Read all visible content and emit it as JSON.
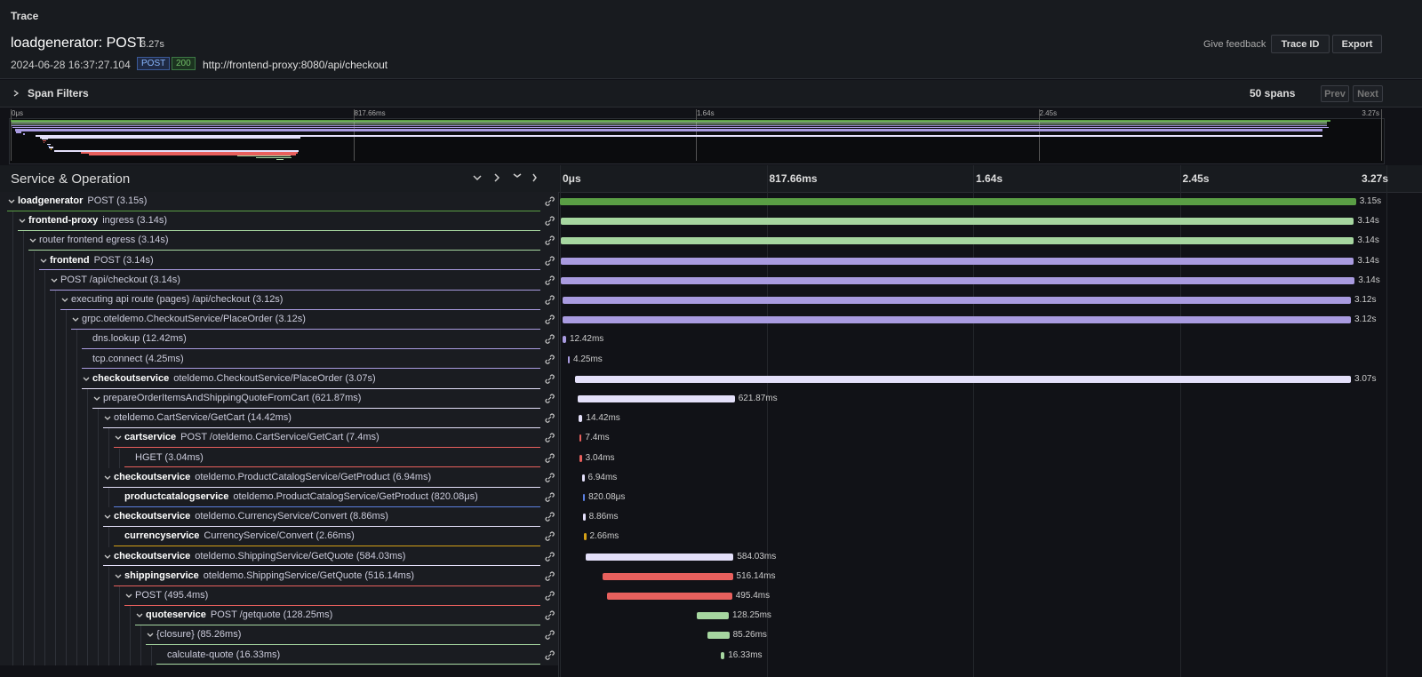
{
  "header": {
    "panel_title": "Trace",
    "title": "loadgenerator: POST",
    "duration": "3.27s",
    "timestamp": "2024-06-28 16:37:27.104",
    "method": "POST",
    "status": "200",
    "url": "http://frontend-proxy:8080/api/checkout",
    "feedback": "Give feedback",
    "trace_id_button": "Trace ID",
    "export_button": "Export"
  },
  "filters": {
    "label": "Span Filters",
    "span_count": "50 spans",
    "prev": "Prev",
    "next": "Next"
  },
  "timeline": {
    "column_title": "Service & Operation",
    "range": [
      0,
      3270.64
    ],
    "ticks": [
      {
        "value": 0,
        "label": "0μs"
      },
      {
        "value": 817.66,
        "label": "817.66ms"
      },
      {
        "value": 1635.32,
        "label": "1.64s"
      },
      {
        "value": 2452.98,
        "label": "2.45s"
      },
      {
        "value": 3270.64,
        "label": "3.27s"
      }
    ]
  },
  "spans": [
    {
      "level": 0,
      "service": "loadgenerator",
      "operation": "POST (3.15s)",
      "start": 0,
      "duration": 3150,
      "duration_label": "3.15s",
      "color": "#5a9e45",
      "expandable": true
    },
    {
      "level": 1,
      "service": "frontend-proxy",
      "operation": "ingress (3.14s)",
      "start": 2,
      "duration": 3140,
      "duration_label": "3.14s",
      "color": "#a6d6a0",
      "expandable": true
    },
    {
      "level": 2,
      "operation": "router frontend egress (3.14s)",
      "start": 2,
      "duration": 3140,
      "duration_label": "3.14s",
      "color": "#a6d6a0",
      "expandable": true
    },
    {
      "level": 3,
      "service": "frontend",
      "operation": "POST (3.14s)",
      "start": 2,
      "duration": 3140,
      "duration_label": "3.14s",
      "color": "#a99be0",
      "expandable": true
    },
    {
      "level": 4,
      "operation": "POST /api/checkout (3.14s)",
      "start": 5,
      "duration": 3140,
      "duration_label": "3.14s",
      "color": "#a99be0",
      "expandable": true
    },
    {
      "level": 5,
      "operation": "executing api route (pages) /api/checkout (3.12s)",
      "start": 10,
      "duration": 3120,
      "duration_label": "3.12s",
      "color": "#a99be0",
      "expandable": true
    },
    {
      "level": 6,
      "operation": "grpc.oteldemo.CheckoutService/PlaceOrder (3.12s)",
      "start": 10,
      "duration": 3120,
      "duration_label": "3.12s",
      "color": "#a99be0",
      "expandable": true
    },
    {
      "level": 7,
      "operation": "dns.lookup (12.42ms)",
      "start": 12,
      "duration": 12.42,
      "duration_label": "12.42ms",
      "color": "#a99be0",
      "expandable": false
    },
    {
      "level": 7,
      "operation": "tcp.connect (4.25ms)",
      "start": 30,
      "duration": 4.25,
      "duration_label": "4.25ms",
      "color": "#a99be0",
      "expandable": false
    },
    {
      "level": 7,
      "service": "checkoutservice",
      "operation": "oteldemo.CheckoutService/PlaceOrder (3.07s)",
      "start": 60,
      "duration": 3070,
      "duration_label": "3.07s",
      "color": "#e4e0fa",
      "expandable": true
    },
    {
      "level": 8,
      "operation": "prepareOrderItemsAndShippingQuoteFromCart (621.87ms)",
      "start": 70,
      "duration": 621.87,
      "duration_label": "621.87ms",
      "color": "#e4e0fa",
      "expandable": true
    },
    {
      "level": 9,
      "operation": "oteldemo.CartService/GetCart (14.42ms)",
      "start": 75,
      "duration": 14.42,
      "duration_label": "14.42ms",
      "color": "#e4e0fa",
      "expandable": true
    },
    {
      "level": 10,
      "service": "cartservice",
      "operation": "POST /oteldemo.CartService/GetCart (7.4ms)",
      "start": 77,
      "duration": 7.4,
      "duration_label": "7.4ms",
      "color": "#e8605d",
      "expandable": true
    },
    {
      "level": 11,
      "operation": "HGET (3.04ms)",
      "start": 78,
      "duration": 3.04,
      "duration_label": "3.04ms",
      "color": "#e8605d",
      "expandable": false
    },
    {
      "level": 9,
      "service": "checkoutservice",
      "operation": "oteldemo.ProductCatalogService/GetProduct (6.94ms)",
      "start": 88,
      "duration": 6.94,
      "duration_label": "6.94ms",
      "color": "#e4e0fa",
      "expandable": true
    },
    {
      "level": 10,
      "service": "productcatalogservice",
      "operation": "oteldemo.ProductCatalogService/GetProduct (820.08μs)",
      "start": 90,
      "duration": 0.82008,
      "duration_label": "820.08μs",
      "color": "#5b7fe0",
      "expandable": false
    },
    {
      "level": 9,
      "service": "checkoutservice",
      "operation": "oteldemo.CurrencyService/Convert (8.86ms)",
      "start": 92,
      "duration": 8.86,
      "duration_label": "8.86ms",
      "color": "#e4e0fa",
      "expandable": true
    },
    {
      "level": 10,
      "service": "currencyservice",
      "operation": "CurrencyService/Convert (2.66ms)",
      "start": 95,
      "duration": 2.66,
      "duration_label": "2.66ms",
      "color": "#d4a017",
      "expandable": false
    },
    {
      "level": 9,
      "service": "checkoutservice",
      "operation": "oteldemo.ShippingService/GetQuote (584.03ms)",
      "start": 103,
      "duration": 584.03,
      "duration_label": "584.03ms",
      "color": "#e4e0fa",
      "expandable": true
    },
    {
      "level": 10,
      "service": "shippingservice",
      "operation": "oteldemo.ShippingService/GetQuote (516.14ms)",
      "start": 168,
      "duration": 516.14,
      "duration_label": "516.14ms",
      "color": "#e8605d",
      "expandable": true
    },
    {
      "level": 11,
      "operation": "POST (495.4ms)",
      "start": 186,
      "duration": 495.4,
      "duration_label": "495.4ms",
      "color": "#e8605d",
      "expandable": true
    },
    {
      "level": 12,
      "service": "quoteservice",
      "operation": "POST /getquote (128.25ms)",
      "start": 540,
      "duration": 128.25,
      "duration_label": "128.25ms",
      "color": "#a6d6a0",
      "expandable": true
    },
    {
      "level": 13,
      "operation": "{closure} (85.26ms)",
      "start": 585,
      "duration": 85.26,
      "duration_label": "85.26ms",
      "color": "#a6d6a0",
      "expandable": true
    },
    {
      "level": 14,
      "operation": "calculate-quote (16.33ms)",
      "start": 635,
      "duration": 16.33,
      "duration_label": "16.33ms",
      "color": "#a6d6a0",
      "expandable": false
    }
  ]
}
